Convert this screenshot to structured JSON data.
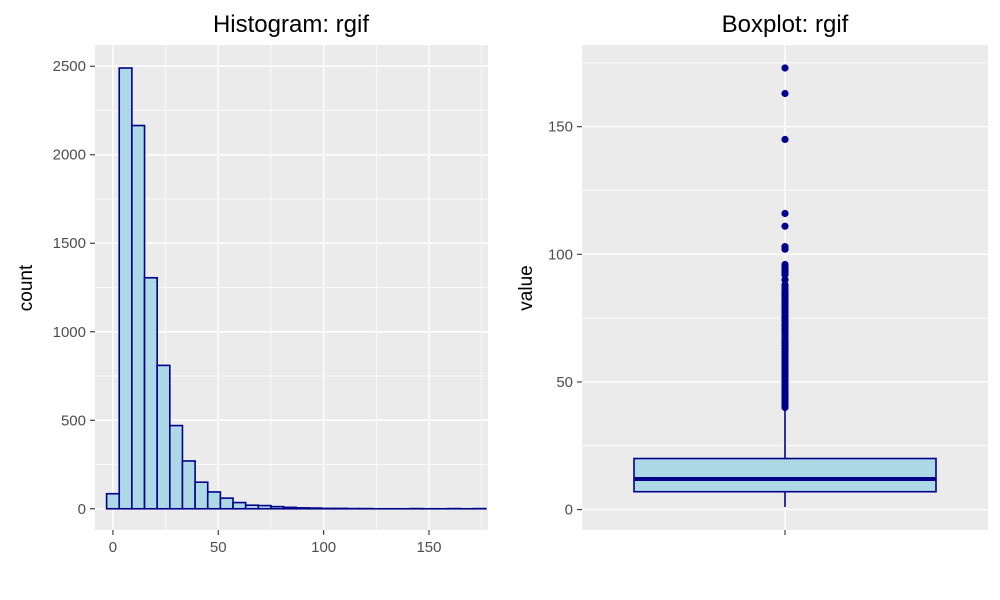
{
  "colors": {
    "fill": "#ADD8E6",
    "outline": "#00008B",
    "panel_background": "#EBEBEB",
    "grid": "#FFFFFF"
  },
  "chart_data": [
    {
      "type": "histogram",
      "title": "Histogram: rgif",
      "xlabel": "",
      "ylabel": "count",
      "xlim": [
        -8.5,
        178
      ],
      "ylim": [
        -120,
        2620
      ],
      "x_ticks": [
        0,
        50,
        100,
        150
      ],
      "y_ticks": [
        0,
        500,
        1000,
        1500,
        2000,
        2500
      ],
      "grid": true,
      "bin_width": 6,
      "bin_starts": [
        -3,
        3,
        9,
        15,
        21,
        27,
        33,
        39,
        45,
        51,
        57,
        63,
        69,
        75,
        81,
        87,
        93,
        99,
        105,
        111,
        117,
        123,
        129,
        135,
        141,
        147,
        153,
        159,
        165,
        171
      ],
      "counts": [
        85,
        2490,
        2165,
        1305,
        810,
        470,
        270,
        150,
        95,
        60,
        35,
        20,
        18,
        12,
        8,
        5,
        4,
        2,
        2,
        1,
        1,
        0,
        0,
        0,
        1,
        0,
        0,
        1,
        0,
        1
      ]
    },
    {
      "type": "boxplot",
      "title": "Boxplot: rgif",
      "xlabel": "",
      "ylabel": "value",
      "ylim": [
        -8,
        182
      ],
      "y_ticks": [
        0,
        50,
        100,
        150
      ],
      "grid": true,
      "box": {
        "whisker_low": 1,
        "q1": 7,
        "median": 12,
        "q3": 20,
        "whisker_high": 39.5
      },
      "outliers": [
        40,
        41,
        42,
        43,
        44,
        45,
        46,
        47,
        48,
        49,
        50,
        51,
        52,
        53,
        54,
        55,
        56,
        57,
        58,
        59,
        60,
        61,
        62,
        63,
        64,
        65,
        66,
        67,
        68,
        69,
        70,
        71,
        72,
        73,
        74,
        75,
        76,
        77,
        78,
        79,
        80,
        81,
        82,
        83,
        84,
        85,
        86,
        87,
        88,
        90,
        92,
        93,
        94,
        95,
        96,
        102,
        103,
        111,
        116,
        145,
        163,
        173
      ]
    }
  ]
}
